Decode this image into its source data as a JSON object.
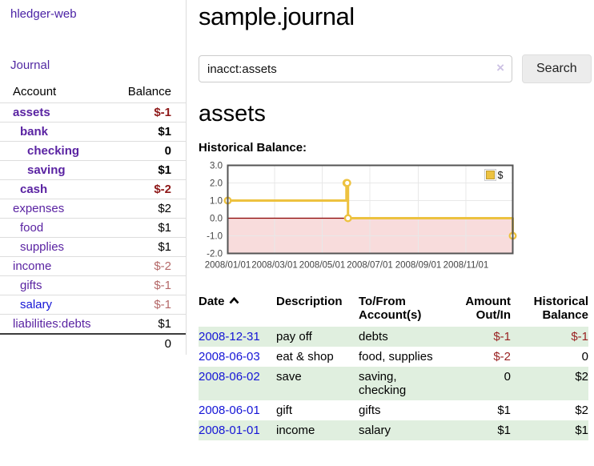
{
  "sidebar": {
    "app_title": "hledger-web",
    "nav": [
      {
        "label": "Journal"
      }
    ],
    "accounts_table": {
      "headers": [
        "Account",
        "Balance"
      ],
      "rows": [
        {
          "account": "assets",
          "balance": "$-1",
          "depth": 0,
          "bold": true,
          "balance_style": "neg"
        },
        {
          "account": "bank",
          "balance": "$1",
          "depth": 1,
          "bold": true,
          "balance_style": ""
        },
        {
          "account": "checking",
          "balance": "0",
          "depth": 2,
          "bold": true,
          "balance_style": ""
        },
        {
          "account": "saving",
          "balance": "$1",
          "depth": 2,
          "bold": true,
          "balance_style": ""
        },
        {
          "account": "cash",
          "balance": "$-2",
          "depth": 1,
          "bold": true,
          "balance_style": "neg"
        },
        {
          "account": "expenses",
          "balance": "$2",
          "depth": 0,
          "bold": false,
          "balance_style": ""
        },
        {
          "account": "food",
          "balance": "$1",
          "depth": 1,
          "bold": false,
          "balance_style": ""
        },
        {
          "account": "supplies",
          "balance": "$1",
          "depth": 1,
          "bold": false,
          "balance_style": ""
        },
        {
          "account": "income",
          "balance": "$-2",
          "depth": 0,
          "bold": false,
          "balance_style": "neglight"
        },
        {
          "account": "gifts",
          "balance": "$-1",
          "depth": 1,
          "bold": false,
          "balance_style": "neglight"
        },
        {
          "account": "salary",
          "balance": "$-1",
          "depth": 1,
          "bold": false,
          "balance_style": "neglight",
          "link_blue": true
        },
        {
          "account": "liabilities:debts",
          "balance": "$1",
          "depth": 0,
          "bold": false,
          "balance_style": ""
        }
      ],
      "total": "0"
    }
  },
  "header": {
    "title": "sample.journal"
  },
  "search": {
    "value": "inacct:assets",
    "clear_icon": "×",
    "button_label": "Search",
    "help_label": "?"
  },
  "account_page": {
    "title": "assets",
    "chart_label": "Historical Balance:"
  },
  "chart_data": {
    "type": "line",
    "title": "Historical Balance:",
    "step": true,
    "x_range": [
      "2008-01-01",
      "2008-12-31"
    ],
    "ylim": [
      -2,
      3
    ],
    "y_tick_labels": [
      "3.0",
      "2.0",
      "1.0",
      "0.0",
      "-1.0",
      "-2.0"
    ],
    "x_tick_labels": [
      "2008/01/01",
      "2008/03/01",
      "2008/05/01",
      "2008/07/01",
      "2008/09/01",
      "2008/11/01"
    ],
    "series": [
      {
        "name": "$",
        "color": "#edc240",
        "points": [
          {
            "date": "2008-01-01",
            "value": 1
          },
          {
            "date": "2008-06-01",
            "value": 2
          },
          {
            "date": "2008-06-02",
            "value": 2
          },
          {
            "date": "2008-06-03",
            "value": 0
          },
          {
            "date": "2008-12-31",
            "value": -1
          }
        ]
      }
    ],
    "legend": {
      "label": "$",
      "position": "top-right",
      "swatch_color": "#edc240"
    },
    "colors": {
      "grid": "#e8e8e8",
      "border": "#545454",
      "zero_line": "#8b0000",
      "negative_region": "#f8dcdc",
      "marker_fill": "#ffffff"
    }
  },
  "register": {
    "headers": [
      "Date",
      "Description",
      "To/From Account(s)",
      "Amount Out/In",
      "Historical Balance"
    ],
    "sort_icon": "chevron-up",
    "rows": [
      {
        "date": "2008-12-31",
        "description": "pay off",
        "accounts": "debts",
        "amount": "$-1",
        "amount_neg": true,
        "balance": "$-1",
        "balance_neg": true,
        "striped": true
      },
      {
        "date": "2008-06-03",
        "description": "eat & shop",
        "accounts": "food, supplies",
        "amount": "$-2",
        "amount_neg": true,
        "balance": "0",
        "balance_neg": false,
        "striped": false
      },
      {
        "date": "2008-06-02",
        "description": "save",
        "accounts": "saving, checking",
        "amount": "0",
        "amount_neg": false,
        "balance": "$2",
        "balance_neg": false,
        "striped": true
      },
      {
        "date": "2008-06-01",
        "description": "gift",
        "accounts": "gifts",
        "amount": "$1",
        "amount_neg": false,
        "balance": "$2",
        "balance_neg": false,
        "striped": false
      },
      {
        "date": "2008-01-01",
        "description": "income",
        "accounts": "salary",
        "amount": "$1",
        "amount_neg": false,
        "balance": "$1",
        "balance_neg": false,
        "striped": true
      }
    ]
  }
}
